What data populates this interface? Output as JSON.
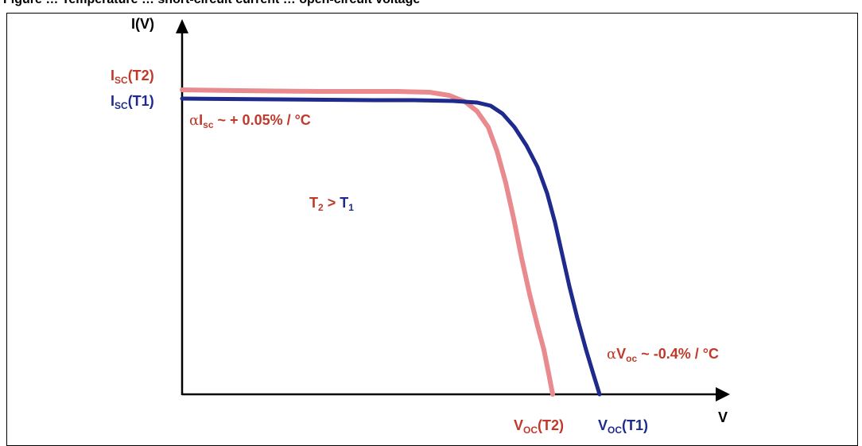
{
  "figure": {
    "caption_cropped": "Figure … Temperature … short-circuit current … open-circuit voltage"
  },
  "axes": {
    "y_label": "I(V)",
    "x_label": "V"
  },
  "labels": {
    "isc_t2": {
      "main": "I",
      "sub": "SC",
      "tail": "(T2)"
    },
    "isc_t1": {
      "main": "I",
      "sub": "SC",
      "tail": "(T1)"
    },
    "alpha_isc": {
      "alpha": "α",
      "main": "I",
      "sub": "sc",
      "tail": " ~ + 0.05%  / °C"
    },
    "temp_relation": {
      "t2": "T",
      "t2_sub": "2",
      "gt": " > ",
      "t1": "T",
      "t1_sub": "1"
    },
    "alpha_voc": {
      "alpha": "α",
      "main": "V",
      "sub": "oc",
      "tail": " ~ -0.4% / °C"
    },
    "voc_t2": {
      "main": "V",
      "sub": "OC",
      "tail": "(T2)"
    },
    "voc_t1": {
      "main": "V",
      "sub": "OC",
      "tail": "(T1)"
    }
  },
  "colors": {
    "t1_curve": "#1e2a8c",
    "t2_curve": "#e88a8e",
    "t2_text": "#c0392b",
    "t1_text": "#1e2a8c"
  }
}
